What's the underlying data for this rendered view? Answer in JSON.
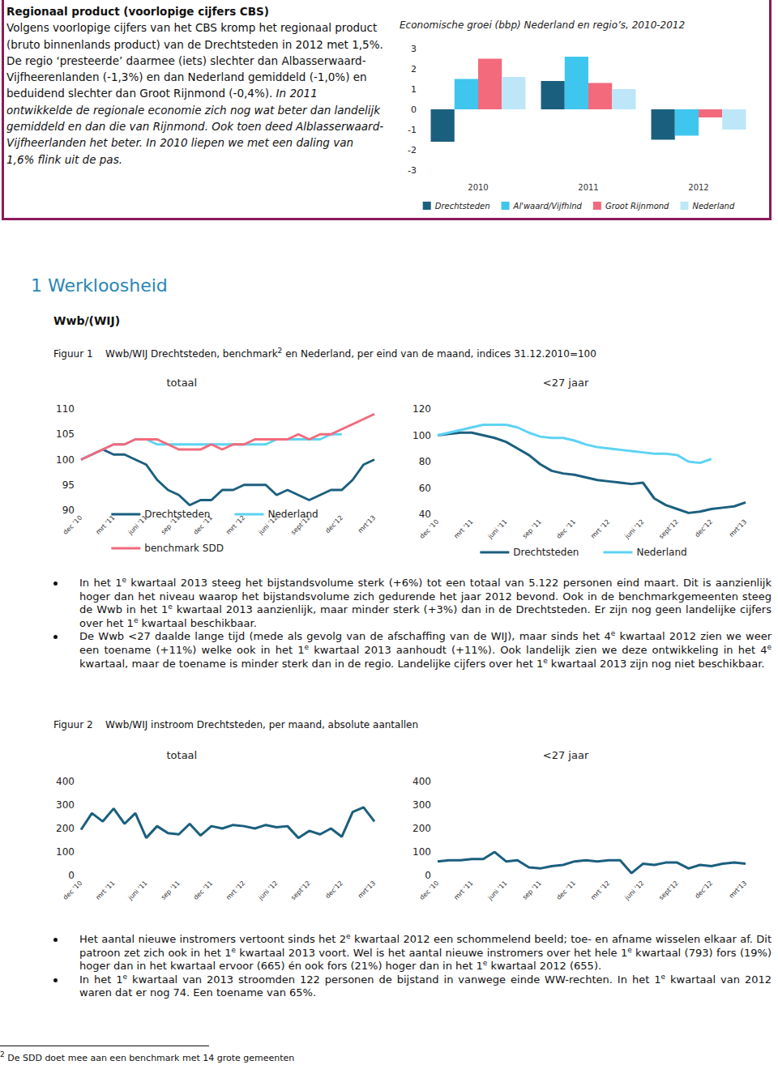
{
  "document": {
    "box": {
      "title": "Regionaal product (voorlopige cijfers CBS)",
      "text": "Volgens voorlopige cijfers van het CBS kromp het regionaal product (bruto binnenlands product) van de Drechtsteden in 2012 met 1,5%. De regio ‘presteerde’ daarmee (iets) slechter dan Albasserwaard-Vijfheerenlanden (-1,3%) en dan Nederland gemiddeld (-1,0%) en beduidend slechter dan Groot Rijnmond (-0,4%).",
      "text_italic": "In 2011 ontwikkelde de regionale economie zich nog wat beter dan landelijk gemiddeld en dan die van Rijnmond. Ook toen deed Alblasserwaard-Vijfheerlanden het beter. In 2010 liepen we met een daling van 1,6% flink uit de pas."
    },
    "heading": "1 Werkloosheid",
    "subheading": "Wwb/(WIJ)",
    "figure1": {
      "label": "Figuur 1",
      "caption_before": "Wwb/WIJ Drechtsteden, benchmark",
      "caption_sup": "2",
      "caption_after": " en Nederland, per eind van de maand, indices 31.12.2010=100"
    },
    "bullets1": [
      "In het 1e kwartaal 2013 steeg het bijstandsvolume sterk (+6%) tot een totaal van 5.122 personen eind maart. Dit is aanzienlijk hoger dan het niveau waarop het bijstandsvolume zich gedurende het jaar 2012 bevond. Ook in de benchmarkgemeenten steeg de Wwb in het 1e kwartaal 2013 aanzienlijk, maar minder sterk (+3%) dan in de Drechtsteden. Er zijn nog geen landelijke cijfers over het 1e kwartaal beschikbaar.",
      "De Wwb <27 daalde lange tijd (mede als gevolg van de afschaffing van de WIJ), maar sinds het 4e kwartaal 2012 zien we weer een toename (+11%) welke ook in het 1e kwartaal 2013 aanhoudt (+11%). Ook landelijk zien we deze ontwikkeling in het 4e kwartaal, maar de toename is minder sterk dan in de regio. Landelijke cijfers over het 1e kwartaal 2013 zijn nog niet beschikbaar."
    ],
    "figure2": {
      "label": "Figuur 2",
      "caption": "Wwb/WIJ instroom Drechtsteden, per maand, absolute aantallen"
    },
    "bullets2": [
      "Het aantal nieuwe instromers vertoont sinds het 2e kwartaal 2012 een schommelend beeld; toe- en afname wisselen elkaar af. Dit patroon zet zich ook in het 1e kwartaal 2013 voort. Wel is het aantal nieuwe instromers over het hele 1e kwartaal (793) fors (19%) hoger dan in het kwartaal ervoor (665) én ook fors (21%) hoger dan in het 1e kwartaal 2012 (655).",
      "In het 1e kwartaal van 2013 stroomden 122 personen de bijstand in vanwege einde WW-rechten. In het 1e kwartaal van 2012 waren dat er nog 74. Een toename van 65%."
    ],
    "footnote": {
      "mark": "2",
      "text": " De SDD doet mee aan een benchmark met 14 grote gemeenten"
    }
  },
  "chart_data": [
    {
      "type": "bar",
      "title": "Economische groei (bbp) Nederland en regio’s, 2010-2012",
      "categories": [
        "2010",
        "2011",
        "2012"
      ],
      "series": [
        {
          "name": "Drechtsteden",
          "color": "#1b5f7e",
          "values": [
            -1.6,
            1.4,
            -1.5
          ]
        },
        {
          "name": "Al'waard/Vijfhlnd",
          "color": "#3ec6ef",
          "values": [
            1.5,
            2.6,
            -1.3
          ]
        },
        {
          "name": "Groot Rijnmond",
          "color": "#f26a7c",
          "values": [
            2.5,
            1.3,
            -0.4
          ]
        },
        {
          "name": "Nederland",
          "color": "#bde7f9",
          "values": [
            1.6,
            1.0,
            -1.0
          ]
        }
      ],
      "ylim": [
        -3,
        3
      ],
      "yticks": [
        -3,
        -2,
        -1,
        0,
        1,
        2,
        3
      ],
      "grid": false,
      "legend": "bottom"
    },
    {
      "type": "line",
      "title": "totaal",
      "categories": [
        "dec '10",
        null,
        null,
        "mrt '11",
        null,
        null,
        "juni '11",
        null,
        null,
        "sep '11",
        null,
        null,
        "dec '11",
        null,
        null,
        "mrt '12",
        null,
        null,
        "juni '12",
        null,
        null,
        "sept'12",
        null,
        null,
        "dec'12",
        null,
        null,
        "mrt'13"
      ],
      "series": [
        {
          "name": "Drechtsteden",
          "color": "#1b5f7e",
          "values": [
            100,
            101,
            102,
            101,
            101,
            100,
            99,
            96,
            94,
            93,
            91,
            92,
            92,
            94,
            94,
            95,
            95,
            95,
            93,
            94,
            93,
            92,
            93,
            94,
            94,
            96,
            99,
            100
          ]
        },
        {
          "name": "Nederland",
          "color": "#5dd3f3",
          "values": [
            100,
            101,
            102,
            103,
            103,
            104,
            104,
            103,
            103,
            103,
            103,
            103,
            103,
            103,
            103,
            103,
            103,
            103,
            104,
            104,
            104,
            104,
            104,
            105,
            105,
            null,
            null,
            null
          ]
        },
        {
          "name": "benchmark SDD",
          "color": "#f26a7c",
          "values": [
            100,
            101,
            102,
            103,
            103,
            104,
            104,
            104,
            103,
            102,
            102,
            102,
            103,
            102,
            103,
            103,
            104,
            104,
            104,
            104,
            105,
            104,
            105,
            105,
            106,
            107,
            108,
            109
          ]
        }
      ],
      "ylim": [
        90,
        110
      ],
      "yticks": [
        90,
        95,
        100,
        105,
        110
      ],
      "grid": false,
      "legend": "bottom"
    },
    {
      "type": "line",
      "title": "<27 jaar",
      "categories": [
        "dec '10",
        null,
        null,
        "mrt '11",
        null,
        null,
        "juni '11",
        null,
        null,
        "sep '11",
        null,
        null,
        "dec '11",
        null,
        null,
        "mrt '12",
        null,
        null,
        "juni '12",
        null,
        null,
        "sept'12",
        null,
        null,
        "dec'12",
        null,
        null,
        "mrt'13"
      ],
      "series": [
        {
          "name": "Drechtsteden",
          "color": "#1b5f7e",
          "values": [
            100,
            101,
            102,
            102,
            100,
            98,
            95,
            90,
            85,
            78,
            73,
            71,
            70,
            68,
            66,
            65,
            64,
            63,
            64,
            52,
            47,
            44,
            41,
            42,
            44,
            45,
            46,
            49
          ]
        },
        {
          "name": "Nederland",
          "color": "#5dd3f3",
          "values": [
            100,
            102,
            104,
            106,
            108,
            108,
            108,
            106,
            102,
            99,
            98,
            98,
            96,
            93,
            91,
            90,
            89,
            88,
            87,
            86,
            86,
            85,
            80,
            79,
            82,
            null,
            null,
            null
          ]
        }
      ],
      "ylim": [
        40,
        120
      ],
      "yticks": [
        40,
        60,
        80,
        100,
        120
      ],
      "grid": false,
      "legend": "bottom"
    },
    {
      "type": "line",
      "title": "totaal",
      "categories": [
        "dec '10",
        null,
        null,
        "mrt '11",
        null,
        null,
        "juni '11",
        null,
        null,
        "sep '11",
        null,
        null,
        "dec '11",
        null,
        null,
        "mrt '12",
        null,
        null,
        "juni '12",
        null,
        null,
        "sept'12",
        null,
        null,
        "dec'12",
        null,
        null,
        "mrt'13"
      ],
      "series": [
        {
          "color": "#1b5f7e",
          "values": [
            195,
            265,
            230,
            285,
            220,
            265,
            160,
            210,
            180,
            175,
            220,
            170,
            210,
            200,
            215,
            210,
            200,
            215,
            205,
            210,
            160,
            190,
            175,
            200,
            165,
            270,
            290,
            230
          ]
        }
      ],
      "ylim": [
        0,
        400
      ],
      "yticks": [
        0,
        100,
        200,
        300,
        400
      ],
      "grid": false
    },
    {
      "type": "line",
      "title": "<27 jaar",
      "categories": [
        "dec '10",
        null,
        null,
        "mrt '11",
        null,
        null,
        "juni '11",
        null,
        null,
        "sep '11",
        null,
        null,
        "dec '11",
        null,
        null,
        "mrt '12",
        null,
        null,
        "juni '12",
        null,
        null,
        "sept'12",
        null,
        null,
        "dec'12",
        null,
        null,
        "mrt'13"
      ],
      "series": [
        {
          "color": "#1b5f7e",
          "values": [
            60,
            65,
            65,
            70,
            70,
            100,
            60,
            65,
            35,
            30,
            40,
            45,
            60,
            65,
            60,
            65,
            65,
            10,
            50,
            45,
            55,
            55,
            30,
            45,
            40,
            50,
            55,
            50
          ]
        }
      ],
      "ylim": [
        0,
        400
      ],
      "yticks": [
        0,
        100,
        200,
        300,
        400
      ],
      "grid": false
    }
  ]
}
